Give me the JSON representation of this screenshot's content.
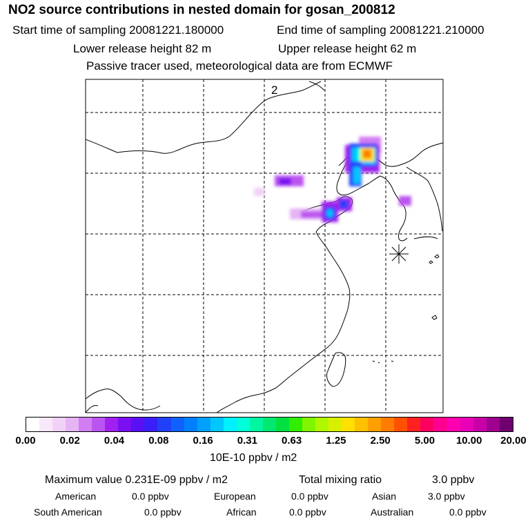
{
  "header": {
    "title": "NO2 source contributions in nested domain for gosan_200812",
    "start_time": "Start time of sampling 20081221.180000",
    "end_time": "End time of sampling 20081221.210000",
    "lower_release": "Lower release height   82 m",
    "upper_release": "Upper release height   62 m",
    "tracer_note": "Passive tracer used, meteorological data are from ECMWF"
  },
  "map": {
    "panel_label": "2",
    "station_marker": "asterisk-icon",
    "colors": {
      "frame": "#000000",
      "coast": "#000000",
      "grid": "#000000"
    }
  },
  "colorbar": {
    "units": "10E-10 ppbv / m2",
    "ticks": [
      "0.00",
      "0.02",
      "0.04",
      "0.08",
      "0.16",
      "0.31",
      "0.63",
      "1.25",
      "2.50",
      "5.00",
      "10.00",
      "20.00"
    ],
    "colors": [
      "#ffffff",
      "#f8e8fb",
      "#f0d2f8",
      "#e6b3f5",
      "#d27ef2",
      "#bb55f0",
      "#a020f0",
      "#7a0ff2",
      "#5a10f5",
      "#3b1ff8",
      "#2040fa",
      "#1060ff",
      "#0080ff",
      "#00a0ff",
      "#00c8ff",
      "#00f0ff",
      "#00ffd8",
      "#00f5a0",
      "#00e870",
      "#00e040",
      "#30ee00",
      "#80f500",
      "#b0f800",
      "#d8f000",
      "#ffe000",
      "#ffc000",
      "#ffa000",
      "#ff7c00",
      "#ff5000",
      "#ff2020",
      "#ff0060",
      "#ff0090",
      "#ff00b0",
      "#e800b8",
      "#c800a8",
      "#a00090",
      "#700070"
    ]
  },
  "summary": {
    "maximum_value": "Maximum value  0.231E-09 ppbv / m2",
    "total_label": "Total mixing ratio",
    "total_value": "3.0 ppbv",
    "regions": [
      {
        "name": "American",
        "value": "0.0 ppbv"
      },
      {
        "name": "European",
        "value": "0.0 ppbv"
      },
      {
        "name": "Asian",
        "value": "3.0 ppbv"
      },
      {
        "name": "South American",
        "value": "0.0 ppbv"
      },
      {
        "name": "African",
        "value": "0.0 ppbv"
      },
      {
        "name": "Australian",
        "value": "0.0 ppbv"
      }
    ]
  }
}
